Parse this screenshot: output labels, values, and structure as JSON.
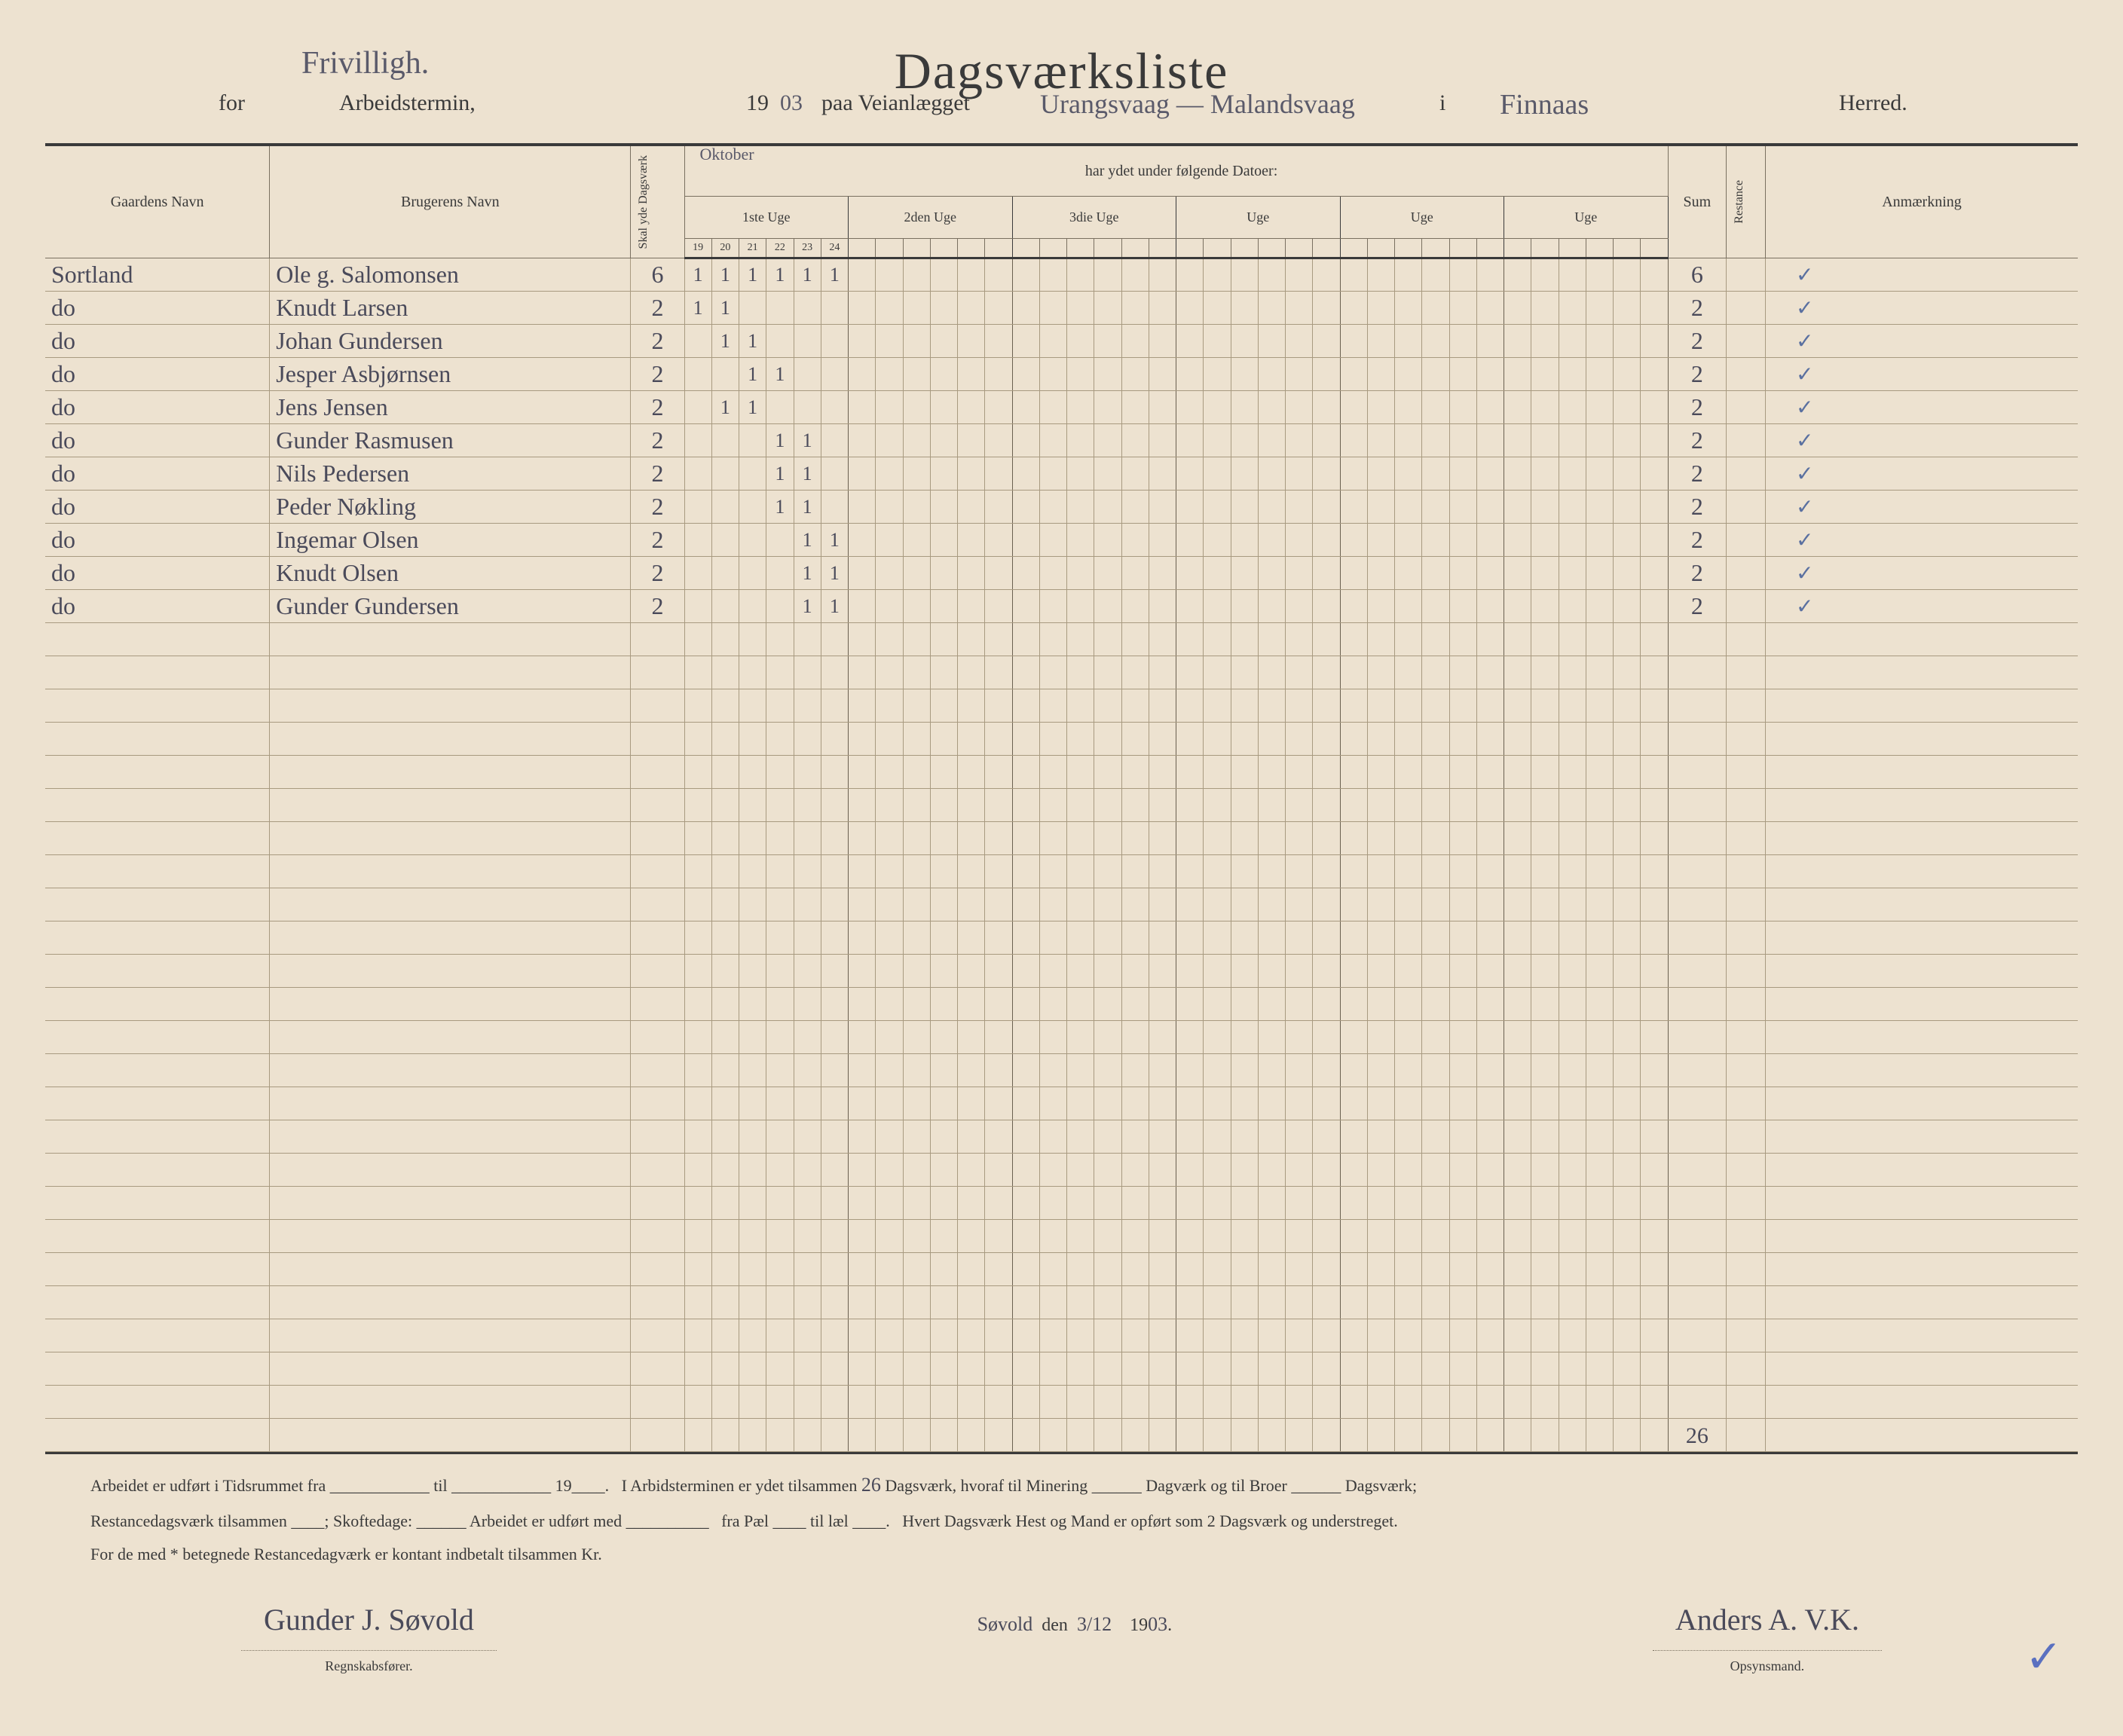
{
  "header": {
    "annotation_top": "Frivilligh.",
    "main_title": "Dagsværksliste",
    "for": "for",
    "arbeidstermin": "Arbeidstermin,",
    "year_prefix": "19",
    "year_suffix": "03",
    "paa_vei": "paa Veianlægget",
    "route": "Urangsvaag — Malandsvaag",
    "i": "i",
    "herred_name": "Finnaas",
    "herred": "Herred."
  },
  "columns": {
    "gaard": "Gaardens Navn",
    "bruger": "Brugerens Navn",
    "skal_yde": "Skal yde Dagsværk",
    "month": "Oktober",
    "datoer_label": "har ydet under følgende Datoer:",
    "uge1": "1ste Uge",
    "uge2": "2den Uge",
    "uge3": "3die Uge",
    "uge4": "Uge",
    "uge5": "Uge",
    "uge6": "Uge",
    "uge1_days": [
      "19",
      "20",
      "21",
      "22",
      "23",
      "24"
    ],
    "sum": "Sum",
    "restance": "Restance",
    "anmaerkning": "Anmærkning"
  },
  "rows": [
    {
      "gaard": "Sortland",
      "bruger": "Ole g. Salomonsen",
      "skal": "6",
      "days": [
        "1",
        "1",
        "1",
        "1",
        "1",
        "1"
      ],
      "sum": "6",
      "check": "✓"
    },
    {
      "gaard": "do",
      "bruger": "Knudt Larsen",
      "skal": "2",
      "days": [
        "1",
        "1",
        "",
        "",
        "",
        ""
      ],
      "sum": "2",
      "check": "✓"
    },
    {
      "gaard": "do",
      "bruger": "Johan Gundersen",
      "skal": "2",
      "days": [
        "",
        "1",
        "1",
        "",
        "",
        ""
      ],
      "sum": "2",
      "check": "✓"
    },
    {
      "gaard": "do",
      "bruger": "Jesper Asbjørnsen",
      "skal": "2",
      "days": [
        "",
        "",
        "1",
        "1",
        "",
        ""
      ],
      "sum": "2",
      "check": "✓"
    },
    {
      "gaard": "do",
      "bruger": "Jens Jensen",
      "skal": "2",
      "days": [
        "",
        "1",
        "1",
        "",
        "",
        ""
      ],
      "sum": "2",
      "check": "✓"
    },
    {
      "gaard": "do",
      "bruger": "Gunder Rasmusen",
      "skal": "2",
      "days": [
        "",
        "",
        "",
        "1",
        "1",
        ""
      ],
      "sum": "2",
      "check": "✓"
    },
    {
      "gaard": "do",
      "bruger": "Nils Pedersen",
      "skal": "2",
      "days": [
        "",
        "",
        "",
        "1",
        "1",
        ""
      ],
      "sum": "2",
      "check": "✓"
    },
    {
      "gaard": "do",
      "bruger": "Peder Nøkling",
      "skal": "2",
      "days": [
        "",
        "",
        "",
        "1",
        "1",
        ""
      ],
      "sum": "2",
      "check": "✓"
    },
    {
      "gaard": "do",
      "bruger": "Ingemar Olsen",
      "skal": "2",
      "days": [
        "",
        "",
        "",
        "",
        "1",
        "1"
      ],
      "sum": "2",
      "check": "✓"
    },
    {
      "gaard": "do",
      "bruger": "Knudt Olsen",
      "skal": "2",
      "days": [
        "",
        "",
        "",
        "",
        "1",
        "1"
      ],
      "sum": "2",
      "check": "✓"
    },
    {
      "gaard": "do",
      "bruger": "Gunder Gundersen",
      "skal": "2",
      "days": [
        "",
        "",
        "",
        "",
        "1",
        "1"
      ],
      "sum": "2",
      "check": "✓"
    }
  ],
  "total_sum": "26",
  "footer": {
    "line1a": "Arbeidet er udført i Tidsrummet fra",
    "line1b": "til",
    "line1c": "19",
    "line1d": "I Arbidsterminen er ydet tilsammen",
    "total": "26",
    "line1e": "Dagsværk, hvoraf til Minering",
    "line1f": "Dagværk og til Broer",
    "line1g": "Dagsværk;",
    "line2a": "Restancedagsværk tilsammen",
    "line2b": "; Skoftedage:",
    "line2c": "Arbeidet er udført med",
    "line2d": "fra Pæl",
    "line2e": "til læl",
    "line2f": "Hvert Dagsværk Hest og Mand er opført som 2 Dagsværk og understreget.",
    "line3": "For de med * betegnede Restancedagværk er kontant indbetalt tilsammen Kr.",
    "place": "Søvold",
    "den": "den",
    "date": "3/12",
    "year": "1903",
    "sig_left": "Gunder J. Søvold",
    "role_left": "Regnskabsfører.",
    "sig_right": "Anders A. V.K.",
    "role_right": "Opsynsmand."
  }
}
